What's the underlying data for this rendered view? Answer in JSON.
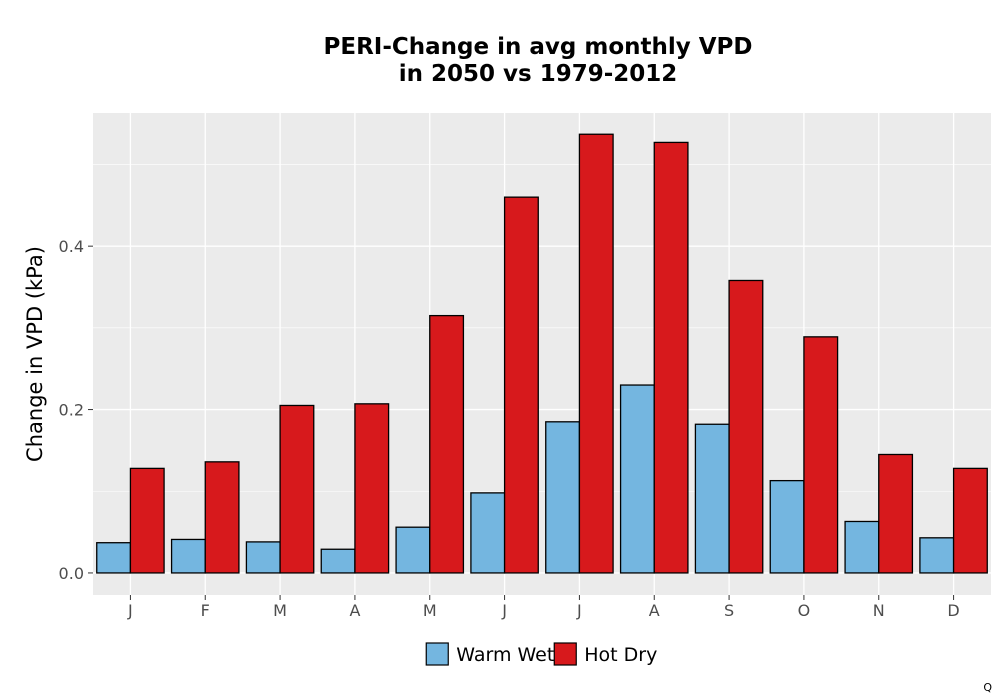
{
  "chart_data": {
    "type": "bar",
    "title": "PERI-Change in avg monthly VPD",
    "subtitle": "in 2050 vs 1979-2012",
    "xlabel": "",
    "ylabel": "Change in VPD (kPa)",
    "categories": [
      "J",
      "F",
      "M",
      "A",
      "M",
      "J",
      "J",
      "A",
      "S",
      "O",
      "N",
      "D"
    ],
    "series": [
      {
        "name": "Warm Wet",
        "color": "#74b6e0",
        "values": [
          0.037,
          0.041,
          0.038,
          0.029,
          0.056,
          0.098,
          0.185,
          0.23,
          0.182,
          0.113,
          0.063,
          0.043
        ]
      },
      {
        "name": "Hot Dry",
        "color": "#d7191c",
        "values": [
          0.128,
          0.136,
          0.205,
          0.207,
          0.315,
          0.46,
          0.537,
          0.527,
          0.358,
          0.289,
          0.145,
          0.128
        ]
      }
    ],
    "ylim": [
      -0.027,
      0.563
    ],
    "yticks": [
      0.0,
      0.2,
      0.4
    ],
    "ytick_labels": [
      "0.0",
      "0.2",
      "0.4"
    ],
    "grid": true,
    "panel_background": "#ebebeb",
    "legend_position": "bottom"
  },
  "corner_mark": "Q"
}
